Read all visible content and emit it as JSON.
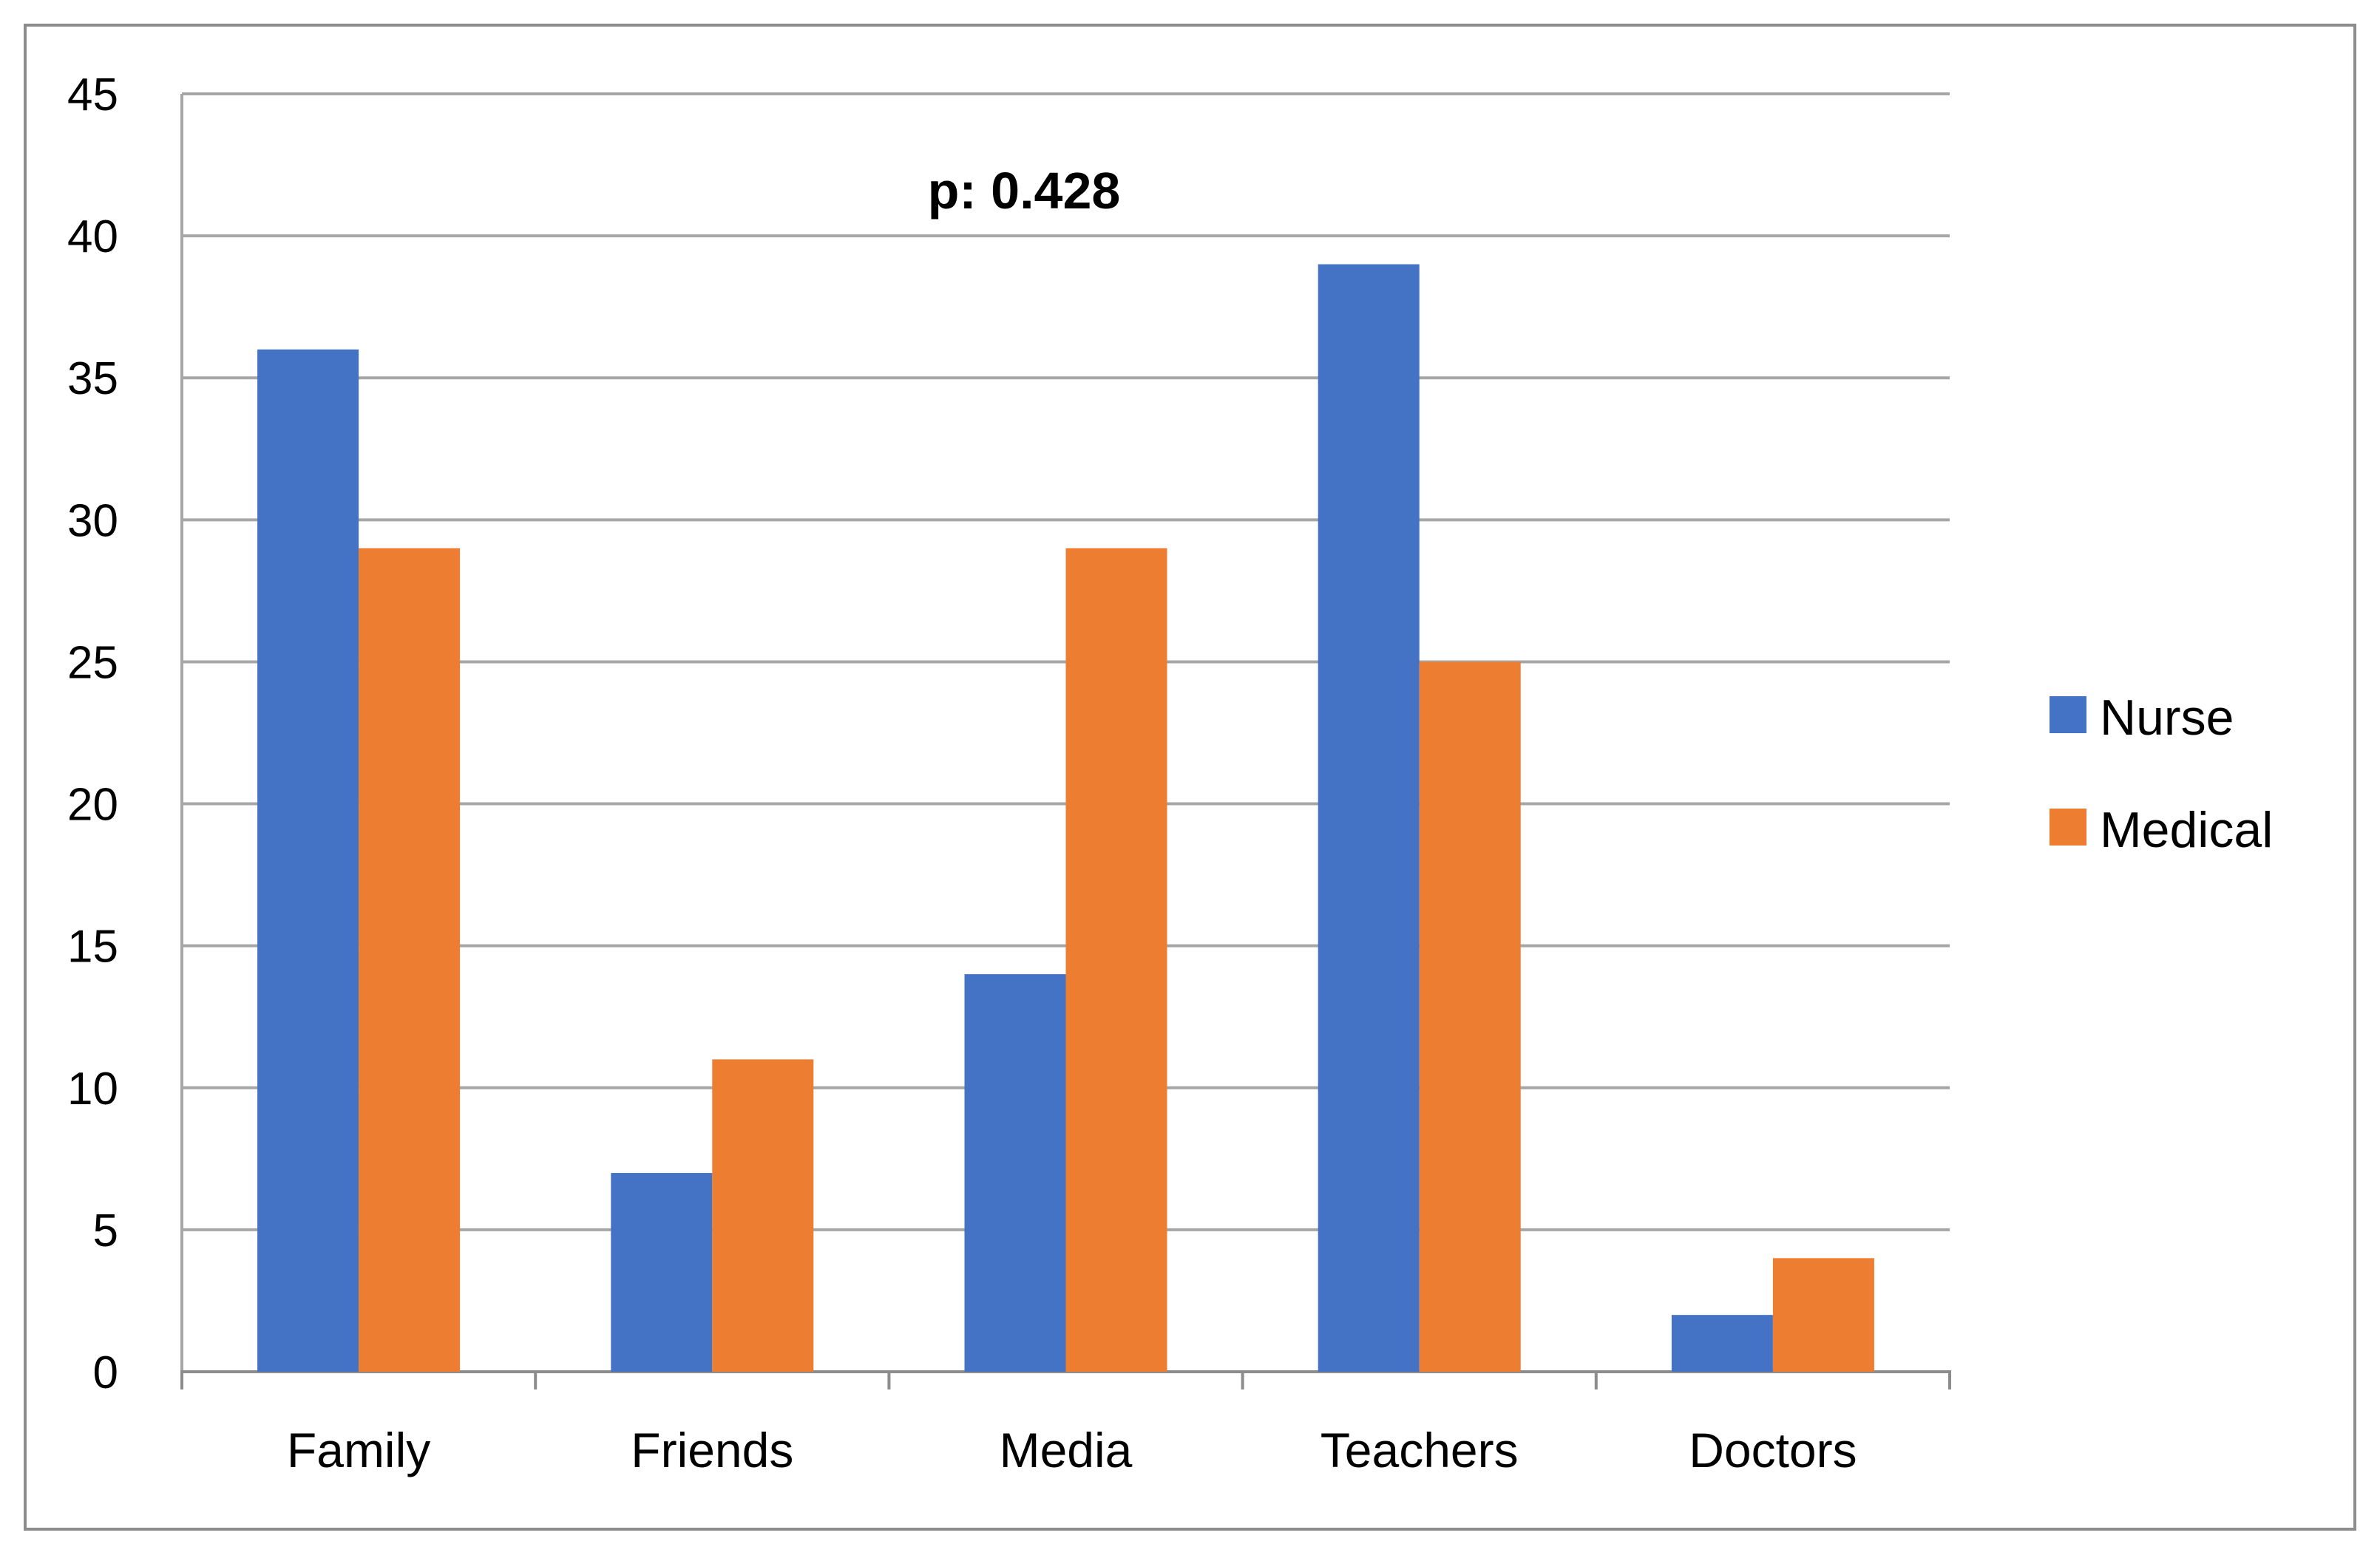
{
  "chart_data": {
    "type": "bar",
    "title": "",
    "xlabel": "",
    "ylabel": "",
    "categories": [
      "Family",
      "Friends",
      "Media",
      "Teachers",
      "Doctors"
    ],
    "series": [
      {
        "name": "Nurse",
        "color": "#4472C4",
        "values": [
          36,
          7,
          14,
          39,
          2
        ]
      },
      {
        "name": "Medical",
        "color": "#ED7D31",
        "values": [
          29,
          11,
          29,
          25,
          4
        ]
      }
    ],
    "ylim": [
      0,
      45
    ],
    "yticks": [
      0,
      5,
      10,
      15,
      20,
      25,
      30,
      35,
      40,
      45
    ],
    "grid": true,
    "legend": "right",
    "annotation": "p: 0.428"
  }
}
